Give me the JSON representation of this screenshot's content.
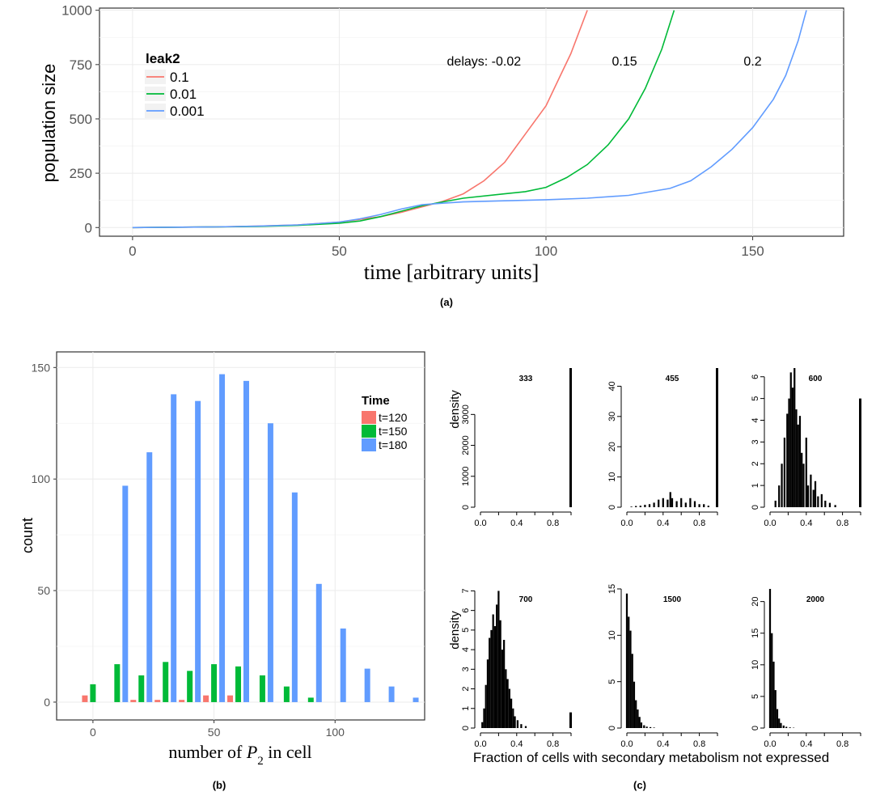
{
  "chart_data": [
    {
      "type": "line",
      "panel_label": "(a)",
      "xlabel": "time [arbitrary units]",
      "ylabel": "population size",
      "xlim": [
        -8,
        172
      ],
      "ylim": [
        -40,
        1010
      ],
      "xticks": [
        0,
        50,
        100,
        150
      ],
      "yticks": [
        0,
        250,
        500,
        750,
        1000
      ],
      "grid": true,
      "legend": {
        "title": "leak2",
        "placement": "top-left"
      },
      "annotations": [
        {
          "text": "delays: -0.02",
          "x": 85,
          "y": 745
        },
        {
          "text": "0.15",
          "x": 119,
          "y": 745
        },
        {
          "text": "0.2",
          "x": 150,
          "y": 745
        }
      ],
      "series": [
        {
          "name": "0.1",
          "color": "#f8766d",
          "x": [
            0,
            20,
            30,
            40,
            50,
            60,
            65,
            70,
            75,
            80,
            85,
            90,
            95,
            100,
            103,
            106,
            108,
            110
          ],
          "y": [
            0,
            3,
            6,
            12,
            25,
            50,
            70,
            95,
            120,
            155,
            215,
            300,
            430,
            560,
            680,
            800,
            900,
            1000
          ]
        },
        {
          "name": "0.01",
          "color": "#00ba38",
          "x": [
            0,
            20,
            30,
            40,
            50,
            55,
            60,
            65,
            70,
            75,
            80,
            90,
            95,
            100,
            105,
            110,
            115,
            120,
            124,
            128,
            131
          ],
          "y": [
            0,
            3,
            5,
            10,
            20,
            30,
            50,
            75,
            100,
            118,
            135,
            155,
            165,
            185,
            230,
            290,
            380,
            500,
            640,
            820,
            1000
          ]
        },
        {
          "name": "0.001",
          "color": "#619cff",
          "x": [
            0,
            20,
            30,
            40,
            50,
            55,
            60,
            65,
            70,
            75,
            80,
            90,
            100,
            110,
            120,
            130,
            135,
            140,
            145,
            150,
            155,
            158,
            161,
            163
          ],
          "y": [
            0,
            3,
            6,
            12,
            25,
            40,
            60,
            85,
            105,
            112,
            118,
            123,
            128,
            135,
            148,
            180,
            215,
            280,
            360,
            460,
            590,
            700,
            860,
            1000
          ]
        }
      ]
    },
    {
      "type": "bar",
      "panel_label": "(b)",
      "xlabel_prefix": "number of ",
      "xlabel_var": "P",
      "xlabel_sub": "2",
      "xlabel_suffix": " in cell",
      "ylabel": "count",
      "xlim": [
        -15,
        137
      ],
      "ylim": [
        -8,
        157
      ],
      "xticks": [
        0,
        50,
        100
      ],
      "yticks": [
        0,
        50,
        100,
        150
      ],
      "grid": true,
      "legend": {
        "title": "Time",
        "placement": "top-right"
      },
      "bin_width": 10,
      "bin_centers": [
        0,
        10,
        20,
        30,
        40,
        50,
        60,
        70,
        80,
        90,
        100,
        110,
        120,
        130
      ],
      "series": [
        {
          "name": "t=120",
          "color": "#f8766d",
          "values": [
            3,
            0,
            1,
            1,
            1,
            3,
            3,
            0,
            0,
            0,
            0,
            0,
            0,
            0
          ]
        },
        {
          "name": "t=150",
          "color": "#00ba38",
          "values": [
            8,
            17,
            12,
            18,
            14,
            17,
            16,
            12,
            7,
            2,
            0,
            0,
            0,
            0
          ]
        },
        {
          "name": "t=180",
          "color": "#619cff",
          "values": [
            0,
            97,
            112,
            138,
            135,
            147,
            144,
            125,
            94,
            53,
            33,
            15,
            7,
            2
          ]
        }
      ]
    },
    {
      "type": "histogram",
      "panel_label": "(c)",
      "shared_xlabel": "Fraction of cells with secondary metabolism not expressed",
      "ylabel": "density",
      "subplots": [
        {
          "title": "333",
          "ylim": [
            0,
            4500
          ],
          "yticks": [
            0,
            1000,
            2000,
            3000
          ],
          "xticks": [
            "0.0",
            "0.4",
            "0.8"
          ],
          "show_ylabel": true,
          "bins": [
            {
              "x": 1.0,
              "y": 4500
            }
          ]
        },
        {
          "title": "455",
          "ylim": [
            0,
            46
          ],
          "yticks": [
            0,
            10,
            20,
            30,
            40
          ],
          "xticks": [
            "0.0",
            "0.4",
            "0.8"
          ],
          "show_ylabel": false,
          "bins": [
            {
              "x": 0.05,
              "y": 0.2
            },
            {
              "x": 0.1,
              "y": 0.4
            },
            {
              "x": 0.15,
              "y": 0.5
            },
            {
              "x": 0.2,
              "y": 0.8
            },
            {
              "x": 0.25,
              "y": 1.0
            },
            {
              "x": 0.3,
              "y": 1.5
            },
            {
              "x": 0.35,
              "y": 2.5
            },
            {
              "x": 0.4,
              "y": 3
            },
            {
              "x": 0.45,
              "y": 2.5
            },
            {
              "x": 0.48,
              "y": 5
            },
            {
              "x": 0.5,
              "y": 3
            },
            {
              "x": 0.55,
              "y": 2
            },
            {
              "x": 0.6,
              "y": 3
            },
            {
              "x": 0.65,
              "y": 1.5
            },
            {
              "x": 0.7,
              "y": 3
            },
            {
              "x": 0.75,
              "y": 2
            },
            {
              "x": 0.8,
              "y": 1
            },
            {
              "x": 0.85,
              "y": 1
            },
            {
              "x": 0.9,
              "y": 0.5
            },
            {
              "x": 1.0,
              "y": 46
            }
          ]
        },
        {
          "title": "600",
          "ylim": [
            0,
            6.4
          ],
          "yticks": [
            0,
            1,
            2,
            3,
            4,
            5,
            6
          ],
          "xticks": [
            "0.0",
            "0.4",
            "0.8"
          ],
          "show_ylabel": false,
          "bins": [
            {
              "x": 0.06,
              "y": 0.3
            },
            {
              "x": 0.1,
              "y": 1.0
            },
            {
              "x": 0.13,
              "y": 2.0
            },
            {
              "x": 0.16,
              "y": 3.2
            },
            {
              "x": 0.19,
              "y": 4.3
            },
            {
              "x": 0.21,
              "y": 5.0
            },
            {
              "x": 0.23,
              "y": 6.2
            },
            {
              "x": 0.25,
              "y": 5.5
            },
            {
              "x": 0.27,
              "y": 6.4
            },
            {
              "x": 0.29,
              "y": 4.5
            },
            {
              "x": 0.31,
              "y": 3.8
            },
            {
              "x": 0.33,
              "y": 4.2
            },
            {
              "x": 0.35,
              "y": 2.5
            },
            {
              "x": 0.37,
              "y": 2.0
            },
            {
              "x": 0.4,
              "y": 3.2
            },
            {
              "x": 0.42,
              "y": 1.0
            },
            {
              "x": 0.45,
              "y": 1.5
            },
            {
              "x": 0.48,
              "y": 0.8
            },
            {
              "x": 0.5,
              "y": 1.2
            },
            {
              "x": 0.53,
              "y": 0.5
            },
            {
              "x": 0.57,
              "y": 0.6
            },
            {
              "x": 0.61,
              "y": 0.3
            },
            {
              "x": 0.66,
              "y": 0.2
            },
            {
              "x": 0.72,
              "y": 0.1
            },
            {
              "x": 1.0,
              "y": 5.0
            }
          ]
        },
        {
          "title": "700",
          "ylim": [
            0,
            7.1
          ],
          "yticks": [
            0,
            1,
            2,
            3,
            4,
            5,
            6,
            7
          ],
          "xticks": [
            "0.0",
            "0.4",
            "0.8"
          ],
          "show_ylabel": true,
          "bins": [
            {
              "x": 0.02,
              "y": 0.3
            },
            {
              "x": 0.04,
              "y": 1.0
            },
            {
              "x": 0.06,
              "y": 2.2
            },
            {
              "x": 0.08,
              "y": 3.5
            },
            {
              "x": 0.1,
              "y": 4.6
            },
            {
              "x": 0.12,
              "y": 5.0
            },
            {
              "x": 0.14,
              "y": 5.8
            },
            {
              "x": 0.16,
              "y": 5.2
            },
            {
              "x": 0.18,
              "y": 6.3
            },
            {
              "x": 0.2,
              "y": 7.0
            },
            {
              "x": 0.22,
              "y": 5.5
            },
            {
              "x": 0.24,
              "y": 4.0
            },
            {
              "x": 0.26,
              "y": 4.5
            },
            {
              "x": 0.28,
              "y": 3.0
            },
            {
              "x": 0.3,
              "y": 2.5
            },
            {
              "x": 0.32,
              "y": 2.0
            },
            {
              "x": 0.34,
              "y": 1.5
            },
            {
              "x": 0.36,
              "y": 1.0
            },
            {
              "x": 0.38,
              "y": 0.6
            },
            {
              "x": 0.41,
              "y": 0.4
            },
            {
              "x": 0.45,
              "y": 0.2
            },
            {
              "x": 0.5,
              "y": 0.1
            },
            {
              "x": 1.0,
              "y": 0.8
            }
          ]
        },
        {
          "title": "1500",
          "ylim": [
            0,
            15
          ],
          "yticks": [
            0,
            5,
            10,
            15
          ],
          "xticks": [
            "0.0",
            "0.4",
            "0.8"
          ],
          "show_ylabel": false,
          "bins": [
            {
              "x": 0.0,
              "y": 14.5
            },
            {
              "x": 0.02,
              "y": 12.0
            },
            {
              "x": 0.04,
              "y": 10.5
            },
            {
              "x": 0.06,
              "y": 8.0
            },
            {
              "x": 0.08,
              "y": 5.0
            },
            {
              "x": 0.1,
              "y": 3.0
            },
            {
              "x": 0.12,
              "y": 2.0
            },
            {
              "x": 0.14,
              "y": 1.2
            },
            {
              "x": 0.16,
              "y": 0.6
            },
            {
              "x": 0.19,
              "y": 0.3
            },
            {
              "x": 0.22,
              "y": 0.15
            },
            {
              "x": 0.26,
              "y": 0.1
            },
            {
              "x": 0.3,
              "y": 0.05
            }
          ]
        },
        {
          "title": "2000",
          "ylim": [
            0,
            22
          ],
          "yticks": [
            0,
            5,
            10,
            15,
            20
          ],
          "xticks": [
            "0.0",
            "0.4",
            "0.8"
          ],
          "show_ylabel": false,
          "bins": [
            {
              "x": 0.0,
              "y": 22.0
            },
            {
              "x": 0.02,
              "y": 15.0
            },
            {
              "x": 0.04,
              "y": 10.5
            },
            {
              "x": 0.06,
              "y": 6.0
            },
            {
              "x": 0.08,
              "y": 3.0
            },
            {
              "x": 0.1,
              "y": 1.5
            },
            {
              "x": 0.12,
              "y": 0.8
            },
            {
              "x": 0.15,
              "y": 0.4
            },
            {
              "x": 0.18,
              "y": 0.2
            },
            {
              "x": 0.22,
              "y": 0.1
            },
            {
              "x": 0.26,
              "y": 0.05
            }
          ]
        }
      ]
    }
  ]
}
